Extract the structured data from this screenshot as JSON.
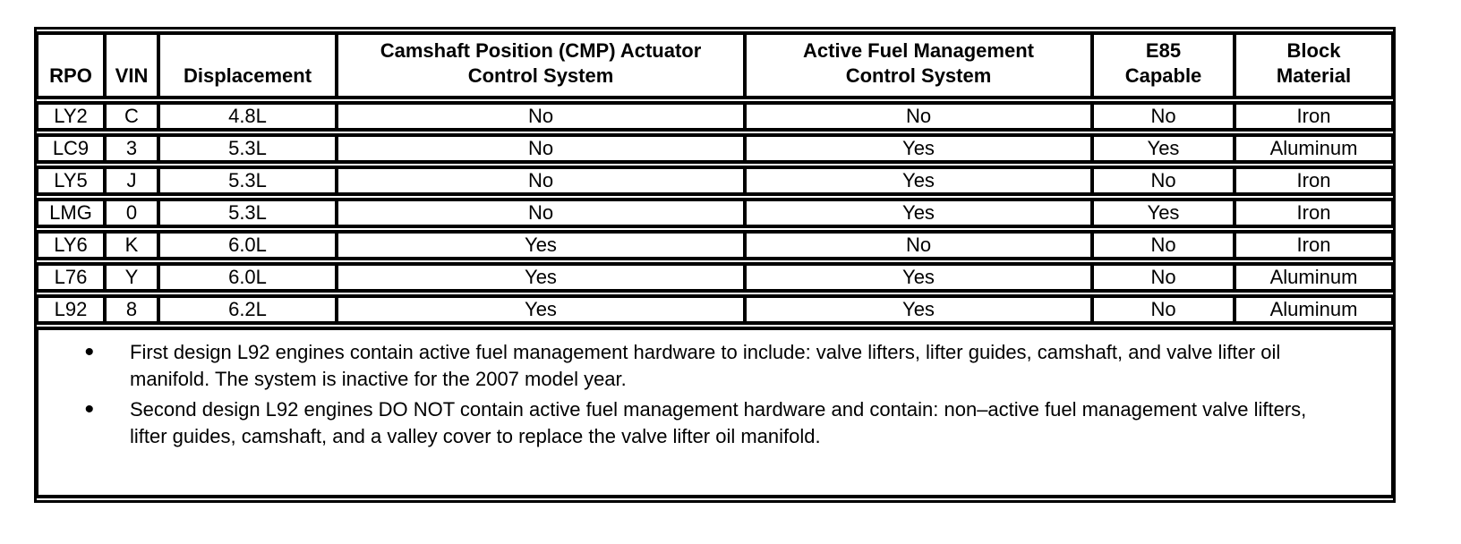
{
  "table": {
    "headers": [
      "RPO",
      "VIN",
      "Displacement",
      "Camshaft Position (CMP) Actuator\nControl System",
      "Active Fuel Management\nControl System",
      "E85\nCapable",
      "Block\nMaterial"
    ],
    "rows": [
      [
        "LY2",
        "C",
        "4.8L",
        "No",
        "No",
        "No",
        "Iron"
      ],
      [
        "LC9",
        "3",
        "5.3L",
        "No",
        "Yes",
        "Yes",
        "Aluminum"
      ],
      [
        "LY5",
        "J",
        "5.3L",
        "No",
        "Yes",
        "No",
        "Iron"
      ],
      [
        "LMG",
        "0",
        "5.3L",
        "No",
        "Yes",
        "Yes",
        "Iron"
      ],
      [
        "LY6",
        "K",
        "6.0L",
        "Yes",
        "No",
        "No",
        "Iron"
      ],
      [
        "L76",
        "Y",
        "6.0L",
        "Yes",
        "Yes",
        "No",
        "Aluminum"
      ],
      [
        "L92",
        "8",
        "6.2L",
        "Yes",
        "Yes",
        "No",
        "Aluminum"
      ]
    ]
  },
  "notes": {
    "bullet_glyph": "•",
    "items": [
      "First design L92 engines contain active fuel management hardware to include: valve lifters, lifter guides, camshaft, and valve lifter oil manifold. The system is inactive for the 2007 model year.",
      "Second design L92 engines DO NOT contain active fuel management hardware and contain: non–active fuel management valve lifters, lifter guides, camshaft, and a valley cover to replace the valve lifter oil manifold."
    ]
  },
  "colors": {
    "border": "#000000",
    "background": "#ffffff",
    "text": "#000000"
  }
}
